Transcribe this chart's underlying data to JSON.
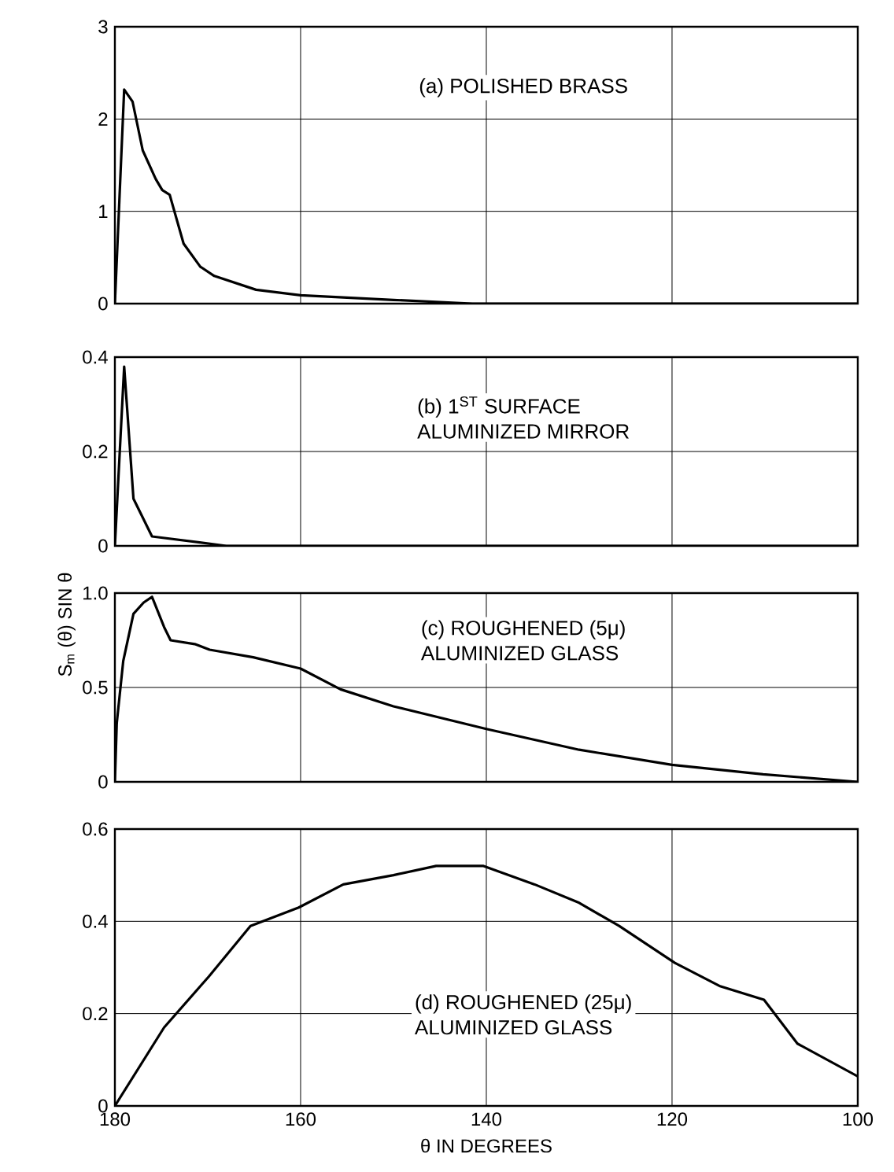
{
  "chart_data": [
    {
      "type": "line",
      "annotations": [
        "(a) POLISHED BRASS"
      ],
      "color": "#000000",
      "x": [
        180,
        179,
        178.1,
        177,
        175.6,
        174.9,
        174.1,
        172.6,
        170.8,
        169.3,
        164.8,
        160,
        150,
        141.5,
        100
      ],
      "values": [
        0,
        2.32,
        2.19,
        1.66,
        1.35,
        1.23,
        1.18,
        0.65,
        0.4,
        0.3,
        0.15,
        0.09,
        0.04,
        0,
        0
      ],
      "xlim": [
        180,
        100
      ],
      "xticks": [
        180,
        160,
        140,
        120,
        100
      ],
      "ylim": [
        0,
        3
      ],
      "yticks": [
        0,
        1,
        2,
        3
      ],
      "grid": true,
      "tick_labels": "y"
    },
    {
      "type": "line",
      "annotations": [
        "(b) 1$^{ST}$ SURFACE",
        "ALUMINIZED MIRROR"
      ],
      "color": "#000000",
      "x": [
        180,
        179,
        178,
        176,
        168,
        100
      ],
      "values": [
        0,
        0.38,
        0.1,
        0.02,
        0,
        0
      ],
      "xlim": [
        180,
        100
      ],
      "xticks": [
        180,
        160,
        140,
        120,
        100
      ],
      "ylim": [
        0,
        0.4
      ],
      "yticks": [
        0,
        0.2,
        0.4
      ],
      "grid": true,
      "tick_labels": "y"
    },
    {
      "type": "line",
      "ylabel": "S$_{m}$ (θ) SIN θ",
      "annotations": [
        "(c) ROUGHENED (5μ)",
        "ALUMINIZED GLASS"
      ],
      "color": "#000000",
      "x": [
        180,
        179.8,
        179.1,
        178,
        176.9,
        176,
        174.7,
        174,
        171.4,
        169.8,
        165.1,
        160,
        155.7,
        150,
        140,
        130,
        120,
        110.2,
        100
      ],
      "values": [
        0,
        0.31,
        0.64,
        0.89,
        0.95,
        0.98,
        0.82,
        0.75,
        0.73,
        0.7,
        0.66,
        0.6,
        0.49,
        0.4,
        0.28,
        0.17,
        0.09,
        0.04,
        0
      ],
      "xlim": [
        180,
        100
      ],
      "xticks": [
        180,
        160,
        140,
        120,
        100
      ],
      "ylim": [
        0,
        1
      ],
      "yticks": [
        0,
        0.5,
        {
          "value": 1,
          "label": "1.0"
        }
      ],
      "grid": true,
      "tick_labels": "y"
    },
    {
      "type": "line",
      "xlabel": "θ IN DEGREES",
      "annotations": [
        "(d) ROUGHENED (25μ)",
        "ALUMINIZED GLASS"
      ],
      "color": "#000000",
      "x": [
        180,
        174.7,
        169.9,
        165.4,
        160.2,
        155.4,
        150,
        145.4,
        140.3,
        134.8,
        130,
        125.7,
        119.7,
        114.9,
        110.1,
        106.5,
        100
      ],
      "values": [
        0,
        0.17,
        0.28,
        0.39,
        0.43,
        0.48,
        0.5,
        0.52,
        0.52,
        0.48,
        0.44,
        0.39,
        0.31,
        0.26,
        0.23,
        0.135,
        0.064
      ],
      "xlim": [
        180,
        100
      ],
      "xticks": [
        180,
        160,
        140,
        120,
        100
      ],
      "ylim": [
        0,
        0.6
      ],
      "yticks": [
        0,
        0.2,
        0.4,
        0.6
      ],
      "grid": true
    }
  ]
}
